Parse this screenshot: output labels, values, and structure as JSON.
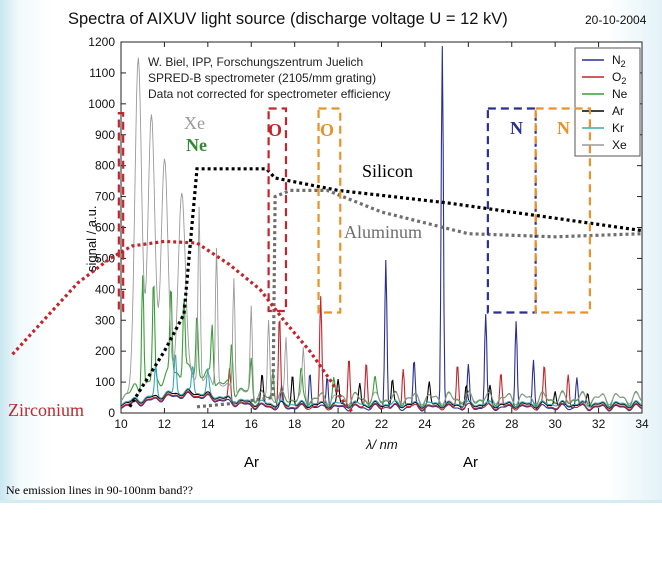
{
  "chart_data": {
    "type": "line",
    "title": "Spectra of AIXUV light source (discharge voltage U = 12 kV)",
    "date": "20-10-2004",
    "xlabel": "λ/ nm",
    "ylabel": "signal / a.u.",
    "xlim": [
      10,
      34
    ],
    "ylim": [
      0,
      1200
    ],
    "xticks": [
      10,
      12,
      14,
      16,
      18,
      20,
      22,
      24,
      26,
      28,
      30,
      32,
      34
    ],
    "yticks": [
      0,
      100,
      200,
      300,
      400,
      500,
      600,
      700,
      800,
      900,
      1000,
      1100,
      1200
    ],
    "info_lines": [
      "W. Biel, IPP, Forschungszentrum Juelich",
      "SPRED-B spectrometer (2105/mm grating)",
      "Data not corrected for spectrometer efficiency"
    ],
    "legend_position": "top-right",
    "series": [
      {
        "name": "N",
        "sub": "2",
        "color": "#2b2f8f",
        "peaks": [
          [
            17.4,
            60
          ],
          [
            18.7,
            120
          ],
          [
            19.5,
            110
          ],
          [
            22.2,
            480
          ],
          [
            23.5,
            150
          ],
          [
            24.8,
            1180
          ],
          [
            26.0,
            130
          ],
          [
            26.8,
            300
          ],
          [
            28.2,
            290
          ],
          [
            29.0,
            160
          ],
          [
            31.0,
            100
          ]
        ]
      },
      {
        "name": "O",
        "sub": "2",
        "color": "#c0272d",
        "peaks": [
          [
            15.0,
            100
          ],
          [
            17.3,
            290
          ],
          [
            19.2,
            350
          ],
          [
            20.5,
            170
          ],
          [
            21.3,
            150
          ],
          [
            23.0,
            130
          ],
          [
            25.5,
            140
          ],
          [
            27.5,
            110
          ],
          [
            29.5,
            130
          ],
          [
            30.6,
            110
          ]
        ]
      },
      {
        "name": "Ne",
        "color": "#3a9d3a",
        "peaks": [
          [
            11.0,
            380
          ],
          [
            11.5,
            320
          ],
          [
            12.3,
            280
          ],
          [
            12.9,
            250
          ],
          [
            13.5,
            200
          ],
          [
            14.2,
            180
          ],
          [
            15.1,
            150
          ],
          [
            16.0,
            120
          ],
          [
            17.0,
            100
          ],
          [
            18.3,
            80
          ],
          [
            19.8,
            60
          ],
          [
            21.7,
            50
          ]
        ]
      },
      {
        "name": "Ar",
        "color": "#000000",
        "peaks": [
          [
            16.5,
            90
          ],
          [
            17.9,
            100
          ],
          [
            20.0,
            80
          ],
          [
            21.0,
            70
          ],
          [
            22.5,
            80
          ],
          [
            24.2,
            70
          ],
          [
            25.9,
            60
          ],
          [
            27.0,
            55
          ],
          [
            30.0,
            50
          ],
          [
            31.5,
            45
          ]
        ]
      },
      {
        "name": "Kr",
        "color": "#3aa7b5",
        "peaks": [
          [
            11.6,
            100
          ],
          [
            12.5,
            130
          ],
          [
            13.3,
            90
          ],
          [
            14.0,
            70
          ]
        ]
      },
      {
        "name": "Xe",
        "color": "#9a9a9a",
        "peaks": [
          [
            10.8,
            1080
          ],
          [
            11.4,
            870
          ],
          [
            12.0,
            720
          ],
          [
            12.8,
            610
          ],
          [
            13.6,
            560
          ],
          [
            14.4,
            450
          ],
          [
            15.2,
            380
          ],
          [
            16.0,
            290
          ],
          [
            16.8,
            250
          ],
          [
            17.6,
            200
          ],
          [
            18.4,
            150
          ]
        ]
      }
    ],
    "transmission_curves": [
      {
        "label": "Silicon",
        "color": "#000000",
        "points": [
          [
            10.4,
            20
          ],
          [
            12.0,
            200
          ],
          [
            12.9,
            320
          ],
          [
            13.5,
            790
          ],
          [
            16.7,
            790
          ],
          [
            17.1,
            760
          ],
          [
            20.0,
            720
          ],
          [
            25.0,
            680
          ],
          [
            30.0,
            630
          ],
          [
            34.0,
            590
          ]
        ]
      },
      {
        "label": "Aluminum",
        "color": "#6e6e6e",
        "points": [
          [
            13.5,
            20
          ],
          [
            15.0,
            30
          ],
          [
            17.0,
            50
          ],
          [
            17.1,
            700
          ],
          [
            17.8,
            720
          ],
          [
            19.5,
            720
          ],
          [
            22.0,
            650
          ],
          [
            26.0,
            580
          ],
          [
            30.0,
            570
          ],
          [
            34.0,
            580
          ]
        ]
      },
      {
        "label": "Zirconium",
        "color": "#c0272d",
        "points": [
          [
            5.0,
            190
          ],
          [
            8.0,
            420
          ],
          [
            9.5,
            500
          ],
          [
            10.5,
            540
          ],
          [
            12.0,
            555
          ],
          [
            13.5,
            550
          ],
          [
            15.0,
            480
          ],
          [
            16.4,
            400
          ],
          [
            17.5,
            300
          ],
          [
            18.7,
            200
          ],
          [
            19.7,
            100
          ],
          [
            20.3,
            30
          ],
          [
            20.7,
            0
          ]
        ]
      }
    ],
    "band_annotations": [
      {
        "label": "",
        "color": "#c0272d",
        "x": [
          9.9,
          10.1
        ],
        "y": [
          330,
          970
        ]
      },
      {
        "label": "Xe",
        "color": "#9a9a9a"
      },
      {
        "label": "Ne",
        "color": "#2e8b2e"
      },
      {
        "label": "O",
        "color": "#c0272d",
        "x": [
          16.8,
          17.6
        ],
        "y": [
          330,
          985
        ]
      },
      {
        "label": "O",
        "color": "#e8922a",
        "x": [
          19.1,
          20.1
        ],
        "y": [
          325,
          985
        ]
      },
      {
        "label": "N",
        "color": "#2b2f8f",
        "x": [
          26.9,
          29.1
        ],
        "y": [
          325,
          985
        ]
      },
      {
        "label": "N",
        "color": "#e8922a",
        "x": [
          29.1,
          31.6
        ],
        "y": [
          325,
          985
        ]
      }
    ]
  },
  "captions": {
    "ar_left": "Ar",
    "ar_right": "Ar",
    "bottom_note": "Ne emission lines in 90-100nm band??"
  }
}
